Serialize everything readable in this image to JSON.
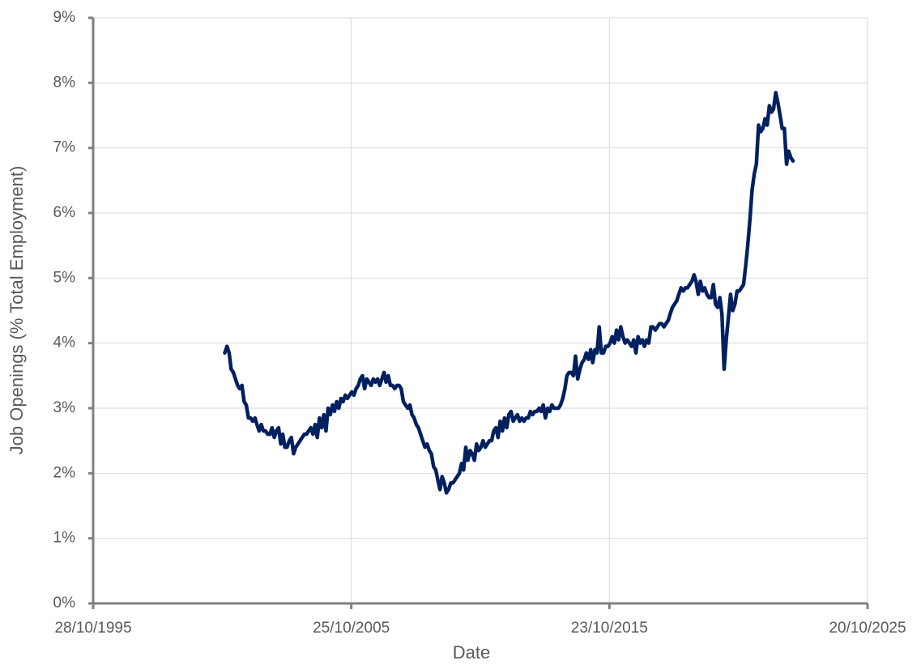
{
  "chart_data": {
    "type": "line",
    "x_label": "Date",
    "y_label": "Job Openings (% Total Employment)",
    "color": "#002060",
    "grid": true,
    "xlim": [
      "1995-10-28",
      "2025-10-20"
    ],
    "xticks": [
      {
        "value": "1995-10-28",
        "label": "28/10/1995"
      },
      {
        "value": "2005-10-25",
        "label": "25/10/2005"
      },
      {
        "value": "2015-10-23",
        "label": "23/10/2015"
      },
      {
        "value": "2025-10-20",
        "label": "20/10/2025"
      }
    ],
    "ylim": [
      0,
      9
    ],
    "yticks": [
      {
        "value": 0,
        "label": "0%"
      },
      {
        "value": 1,
        "label": "1%"
      },
      {
        "value": 2,
        "label": "2%"
      },
      {
        "value": 3,
        "label": "3%"
      },
      {
        "value": 4,
        "label": "4%"
      },
      {
        "value": 5,
        "label": "5%"
      },
      {
        "value": 6,
        "label": "6%"
      },
      {
        "value": 7,
        "label": "7%"
      },
      {
        "value": 8,
        "label": "8%"
      },
      {
        "value": 9,
        "label": "9%"
      }
    ],
    "x": [
      "2000-12-01",
      "2001-01-01",
      "2001-02-01",
      "2001-03-01",
      "2001-04-01",
      "2001-05-01",
      "2001-06-01",
      "2001-07-01",
      "2001-08-01",
      "2001-09-01",
      "2001-10-01",
      "2001-11-01",
      "2001-12-01",
      "2002-01-01",
      "2002-02-01",
      "2002-03-01",
      "2002-04-01",
      "2002-05-01",
      "2002-06-01",
      "2002-07-01",
      "2002-08-01",
      "2002-09-01",
      "2002-10-01",
      "2002-11-01",
      "2002-12-01",
      "2003-01-01",
      "2003-02-01",
      "2003-03-01",
      "2003-04-01",
      "2003-05-01",
      "2003-06-01",
      "2003-07-01",
      "2003-08-01",
      "2003-09-01",
      "2003-10-01",
      "2003-11-01",
      "2003-12-01",
      "2004-01-01",
      "2004-02-01",
      "2004-03-01",
      "2004-04-01",
      "2004-05-01",
      "2004-06-01",
      "2004-07-01",
      "2004-08-01",
      "2004-09-01",
      "2004-10-01",
      "2004-11-01",
      "2004-12-01",
      "2005-01-01",
      "2005-02-01",
      "2005-03-01",
      "2005-04-01",
      "2005-05-01",
      "2005-06-01",
      "2005-07-01",
      "2005-08-01",
      "2005-09-01",
      "2005-10-01",
      "2005-11-01",
      "2005-12-01",
      "2006-01-01",
      "2006-02-01",
      "2006-03-01",
      "2006-04-01",
      "2006-05-01",
      "2006-06-01",
      "2006-07-01",
      "2006-08-01",
      "2006-09-01",
      "2006-10-01",
      "2006-11-01",
      "2006-12-01",
      "2007-01-01",
      "2007-02-01",
      "2007-03-01",
      "2007-04-01",
      "2007-05-01",
      "2007-06-01",
      "2007-07-01",
      "2007-08-01",
      "2007-09-01",
      "2007-10-01",
      "2007-11-01",
      "2007-12-01",
      "2008-01-01",
      "2008-02-01",
      "2008-03-01",
      "2008-04-01",
      "2008-05-01",
      "2008-06-01",
      "2008-07-01",
      "2008-08-01",
      "2008-09-01",
      "2008-10-01",
      "2008-11-01",
      "2008-12-01",
      "2009-01-01",
      "2009-02-01",
      "2009-03-01",
      "2009-04-01",
      "2009-05-01",
      "2009-06-01",
      "2009-07-01",
      "2009-08-01",
      "2009-09-01",
      "2009-10-01",
      "2009-11-01",
      "2009-12-01",
      "2010-01-01",
      "2010-02-01",
      "2010-03-01",
      "2010-04-01",
      "2010-05-01",
      "2010-06-01",
      "2010-07-01",
      "2010-08-01",
      "2010-09-01",
      "2010-10-01",
      "2010-11-01",
      "2010-12-01",
      "2011-01-01",
      "2011-02-01",
      "2011-03-01",
      "2011-04-01",
      "2011-05-01",
      "2011-06-01",
      "2011-07-01",
      "2011-08-01",
      "2011-09-01",
      "2011-10-01",
      "2011-11-01",
      "2011-12-01",
      "2012-01-01",
      "2012-02-01",
      "2012-03-01",
      "2012-04-01",
      "2012-05-01",
      "2012-06-01",
      "2012-07-01",
      "2012-08-01",
      "2012-09-01",
      "2012-10-01",
      "2012-11-01",
      "2012-12-01",
      "2013-01-01",
      "2013-02-01",
      "2013-03-01",
      "2013-04-01",
      "2013-05-01",
      "2013-06-01",
      "2013-07-01",
      "2013-08-01",
      "2013-09-01",
      "2013-10-01",
      "2013-11-01",
      "2013-12-01",
      "2014-01-01",
      "2014-02-01",
      "2014-03-01",
      "2014-04-01",
      "2014-05-01",
      "2014-06-01",
      "2014-07-01",
      "2014-08-01",
      "2014-09-01",
      "2014-10-01",
      "2014-11-01",
      "2014-12-01",
      "2015-01-01",
      "2015-02-01",
      "2015-03-01",
      "2015-04-01",
      "2015-05-01",
      "2015-06-01",
      "2015-07-01",
      "2015-08-01",
      "2015-09-01",
      "2015-10-01",
      "2015-11-01",
      "2015-12-01",
      "2016-01-01",
      "2016-02-01",
      "2016-03-01",
      "2016-04-01",
      "2016-05-01",
      "2016-06-01",
      "2016-07-01",
      "2016-08-01",
      "2016-09-01",
      "2016-10-01",
      "2016-11-01",
      "2016-12-01",
      "2017-01-01",
      "2017-02-01",
      "2017-03-01",
      "2017-04-01",
      "2017-05-01",
      "2017-06-01",
      "2017-07-01",
      "2017-08-01",
      "2017-09-01",
      "2017-10-01",
      "2017-11-01",
      "2017-12-01",
      "2018-01-01",
      "2018-02-01",
      "2018-03-01",
      "2018-04-01",
      "2018-05-01",
      "2018-06-01",
      "2018-07-01",
      "2018-08-01",
      "2018-09-01",
      "2018-10-01",
      "2018-11-01",
      "2018-12-01",
      "2019-01-01",
      "2019-02-01",
      "2019-03-01",
      "2019-04-01",
      "2019-05-01",
      "2019-06-01",
      "2019-07-01",
      "2019-08-01",
      "2019-09-01",
      "2019-10-01",
      "2019-11-01",
      "2019-12-01",
      "2020-01-01",
      "2020-02-01",
      "2020-03-01",
      "2020-04-01",
      "2020-05-01",
      "2020-06-01",
      "2020-07-01",
      "2020-08-01",
      "2020-09-01",
      "2020-10-01",
      "2020-11-01",
      "2020-12-01",
      "2021-01-01",
      "2021-02-01",
      "2021-03-01",
      "2021-04-01",
      "2021-05-01",
      "2021-06-01",
      "2021-07-01",
      "2021-08-01",
      "2021-09-01",
      "2021-10-01",
      "2021-11-01",
      "2021-12-01",
      "2022-01-01",
      "2022-02-01",
      "2022-03-01",
      "2022-04-01",
      "2022-05-01",
      "2022-06-01",
      "2022-07-01",
      "2022-08-01",
      "2022-09-01",
      "2022-10-01",
      "2022-11-01",
      "2022-12-01"
    ],
    "values": [
      3.85,
      3.95,
      3.85,
      3.6,
      3.55,
      3.45,
      3.35,
      3.3,
      3.35,
      3.1,
      3.05,
      2.85,
      2.85,
      2.8,
      2.85,
      2.75,
      2.65,
      2.75,
      2.65,
      2.65,
      2.6,
      2.6,
      2.7,
      2.55,
      2.65,
      2.7,
      2.45,
      2.6,
      2.4,
      2.4,
      2.5,
      2.55,
      2.3,
      2.4,
      2.45,
      2.5,
      2.55,
      2.6,
      2.6,
      2.65,
      2.7,
      2.6,
      2.75,
      2.55,
      2.85,
      2.7,
      2.9,
      2.65,
      3.0,
      2.9,
      3.05,
      2.95,
      3.1,
      3.0,
      3.15,
      3.1,
      3.2,
      3.15,
      3.2,
      3.25,
      3.2,
      3.3,
      3.35,
      3.45,
      3.5,
      3.3,
      3.45,
      3.4,
      3.35,
      3.45,
      3.4,
      3.45,
      3.35,
      3.45,
      3.55,
      3.4,
      3.5,
      3.35,
      3.35,
      3.3,
      3.35,
      3.35,
      3.3,
      3.1,
      3.05,
      3.0,
      3.05,
      2.9,
      2.85,
      2.75,
      2.7,
      2.6,
      2.5,
      2.4,
      2.45,
      2.35,
      2.3,
      2.1,
      2.05,
      1.9,
      1.75,
      1.95,
      1.85,
      1.7,
      1.75,
      1.85,
      1.85,
      1.9,
      1.95,
      2.0,
      2.15,
      2.05,
      2.4,
      2.2,
      2.35,
      2.3,
      2.2,
      2.45,
      2.35,
      2.4,
      2.5,
      2.4,
      2.45,
      2.5,
      2.5,
      2.65,
      2.7,
      2.55,
      2.8,
      2.65,
      2.85,
      2.7,
      2.9,
      2.95,
      2.8,
      2.85,
      2.9,
      2.8,
      2.85,
      2.8,
      2.85,
      2.85,
      2.95,
      2.9,
      2.95,
      2.95,
      3.0,
      2.95,
      3.05,
      2.85,
      3.0,
      2.95,
      3.05,
      3.0,
      3.0,
      3.0,
      3.05,
      3.15,
      3.3,
      3.5,
      3.55,
      3.55,
      3.5,
      3.8,
      3.45,
      3.6,
      3.7,
      3.75,
      3.85,
      3.75,
      3.9,
      3.7,
      3.9,
      3.85,
      4.25,
      3.85,
      3.85,
      3.95,
      3.95,
      4.0,
      4.1,
      4.0,
      4.2,
      4.05,
      4.25,
      4.1,
      4.0,
      4.05,
      4.0,
      3.95,
      4.05,
      3.85,
      4.1,
      4.0,
      4.05,
      3.95,
      4.05,
      4.0,
      4.25,
      4.25,
      4.2,
      4.25,
      4.3,
      4.3,
      4.25,
      4.3,
      4.35,
      4.45,
      4.55,
      4.6,
      4.65,
      4.75,
      4.85,
      4.8,
      4.85,
      4.85,
      4.9,
      4.95,
      5.05,
      4.95,
      4.75,
      4.95,
      4.8,
      4.85,
      4.75,
      4.7,
      4.7,
      4.9,
      4.6,
      4.55,
      4.7,
      4.45,
      3.6,
      4.05,
      4.4,
      4.75,
      4.5,
      4.6,
      4.8,
      4.8,
      4.85,
      4.9,
      5.2,
      5.5,
      5.9,
      6.35,
      6.6,
      6.75,
      7.35,
      7.25,
      7.3,
      7.45,
      7.35,
      7.65,
      7.55,
      7.6,
      7.85,
      7.7,
      7.5,
      7.3,
      7.3,
      6.75,
      6.95,
      6.85,
      6.8
    ]
  }
}
